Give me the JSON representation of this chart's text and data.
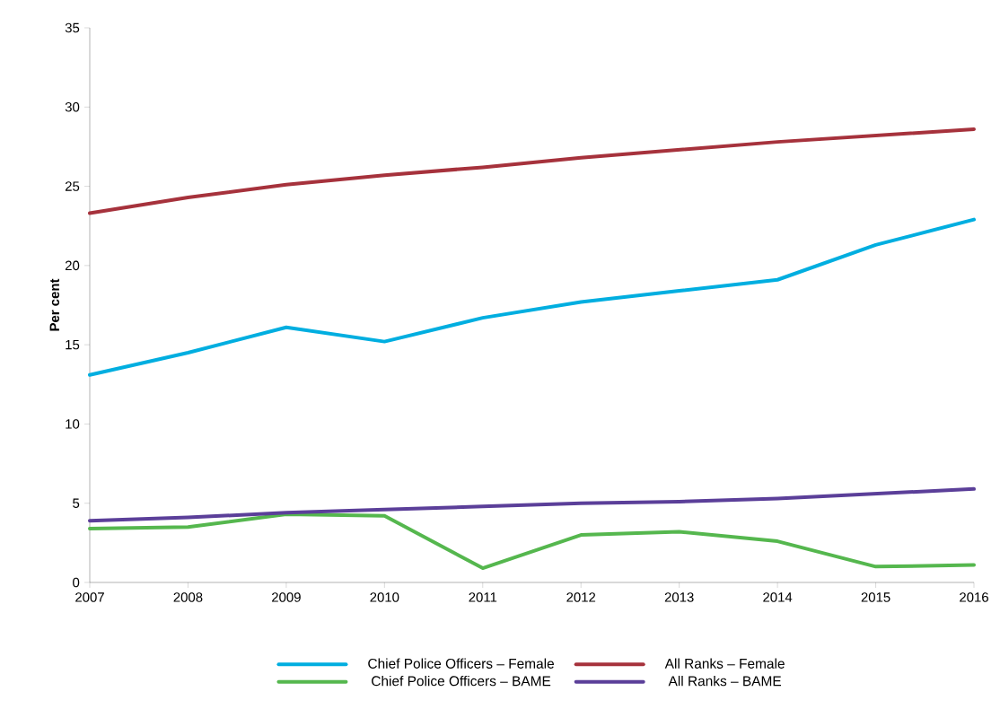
{
  "chart_data": {
    "type": "line",
    "ylabel": "Per cent",
    "x": [
      2007,
      2008,
      2009,
      2010,
      2011,
      2012,
      2013,
      2014,
      2015,
      2016
    ],
    "xlim": [
      2007,
      2016
    ],
    "xticks": [
      2007,
      2008,
      2009,
      2010,
      2011,
      2012,
      2013,
      2014,
      2015,
      2016
    ],
    "ylim": [
      0,
      35
    ],
    "yticks": [
      0,
      5,
      10,
      15,
      20,
      25,
      30,
      35
    ],
    "legend": "bottom",
    "marker": "none",
    "line_style": "solid",
    "series": [
      {
        "name": "Chief Police Officers – Female",
        "color": "#00aee0",
        "values": [
          13.1,
          14.5,
          16.1,
          15.2,
          16.7,
          17.7,
          18.4,
          19.1,
          21.3,
          22.9
        ]
      },
      {
        "name": "All Ranks – Female",
        "color": "#a6323c",
        "values": [
          23.3,
          24.3,
          25.1,
          25.7,
          26.2,
          26.8,
          27.3,
          27.8,
          28.2,
          28.6
        ]
      },
      {
        "name": "Chief Police Officers – BAME",
        "color": "#55b74e",
        "values": [
          3.4,
          3.5,
          4.3,
          4.2,
          0.9,
          3.0,
          3.2,
          2.6,
          1.0,
          1.1
        ]
      },
      {
        "name": "All Ranks – BAME",
        "color": "#5b3f99",
        "values": [
          3.9,
          4.1,
          4.4,
          4.6,
          4.8,
          5.0,
          5.1,
          5.3,
          5.6,
          5.9
        ]
      }
    ]
  }
}
